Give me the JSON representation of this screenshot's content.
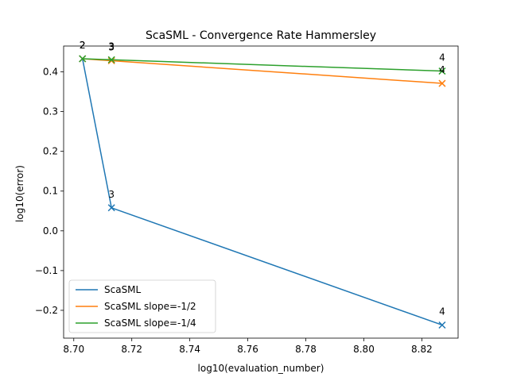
{
  "chart_data": {
    "type": "line",
    "title": "ScaSML - Convergence Rate Hammersley",
    "xlabel": "log10(evaluation_number)",
    "ylabel": "log10(error)",
    "xlim": [
      8.6965,
      8.8325
    ],
    "ylim": [
      -0.27,
      0.465
    ],
    "xticks": [
      8.7,
      8.72,
      8.74,
      8.76,
      8.78,
      8.8,
      8.82
    ],
    "xtick_labels": [
      "8.70",
      "8.72",
      "8.74",
      "8.76",
      "8.78",
      "8.80",
      "8.82"
    ],
    "yticks": [
      -0.2,
      -0.1,
      0.0,
      0.1,
      0.2,
      0.3,
      0.4
    ],
    "ytick_labels": [
      "−0.2",
      "−0.1",
      "0.0",
      "0.1",
      "0.2",
      "0.3",
      "0.4"
    ],
    "grid": false,
    "legend_position": "lower-left",
    "marker": "x",
    "series": [
      {
        "name": "ScaSML",
        "color": "#1f77b4",
        "x": [
          8.703,
          8.713,
          8.827
        ],
        "y": [
          0.433,
          0.058,
          -0.237
        ]
      },
      {
        "name": "ScaSML slope=-1/2",
        "color": "#ff7f0e",
        "x": [
          8.703,
          8.713,
          8.827
        ],
        "y": [
          0.433,
          0.428,
          0.371
        ]
      },
      {
        "name": "ScaSML slope=-1/4",
        "color": "#2ca02c",
        "x": [
          8.703,
          8.713,
          8.827
        ],
        "y": [
          0.433,
          0.4305,
          0.402
        ]
      }
    ],
    "annotations": [
      {
        "text": "2",
        "x": 8.703,
        "y": 0.433
      },
      {
        "text": "3",
        "x": 8.713,
        "y": 0.058
      },
      {
        "text": "4",
        "x": 8.827,
        "y": -0.237
      },
      {
        "text": "2",
        "x": 8.703,
        "y": 0.433
      },
      {
        "text": "3",
        "x": 8.713,
        "y": 0.428
      },
      {
        "text": "4",
        "x": 8.827,
        "y": 0.371
      },
      {
        "text": "2",
        "x": 8.703,
        "y": 0.433
      },
      {
        "text": "3",
        "x": 8.713,
        "y": 0.4305
      },
      {
        "text": "4",
        "x": 8.827,
        "y": 0.402
      }
    ]
  }
}
